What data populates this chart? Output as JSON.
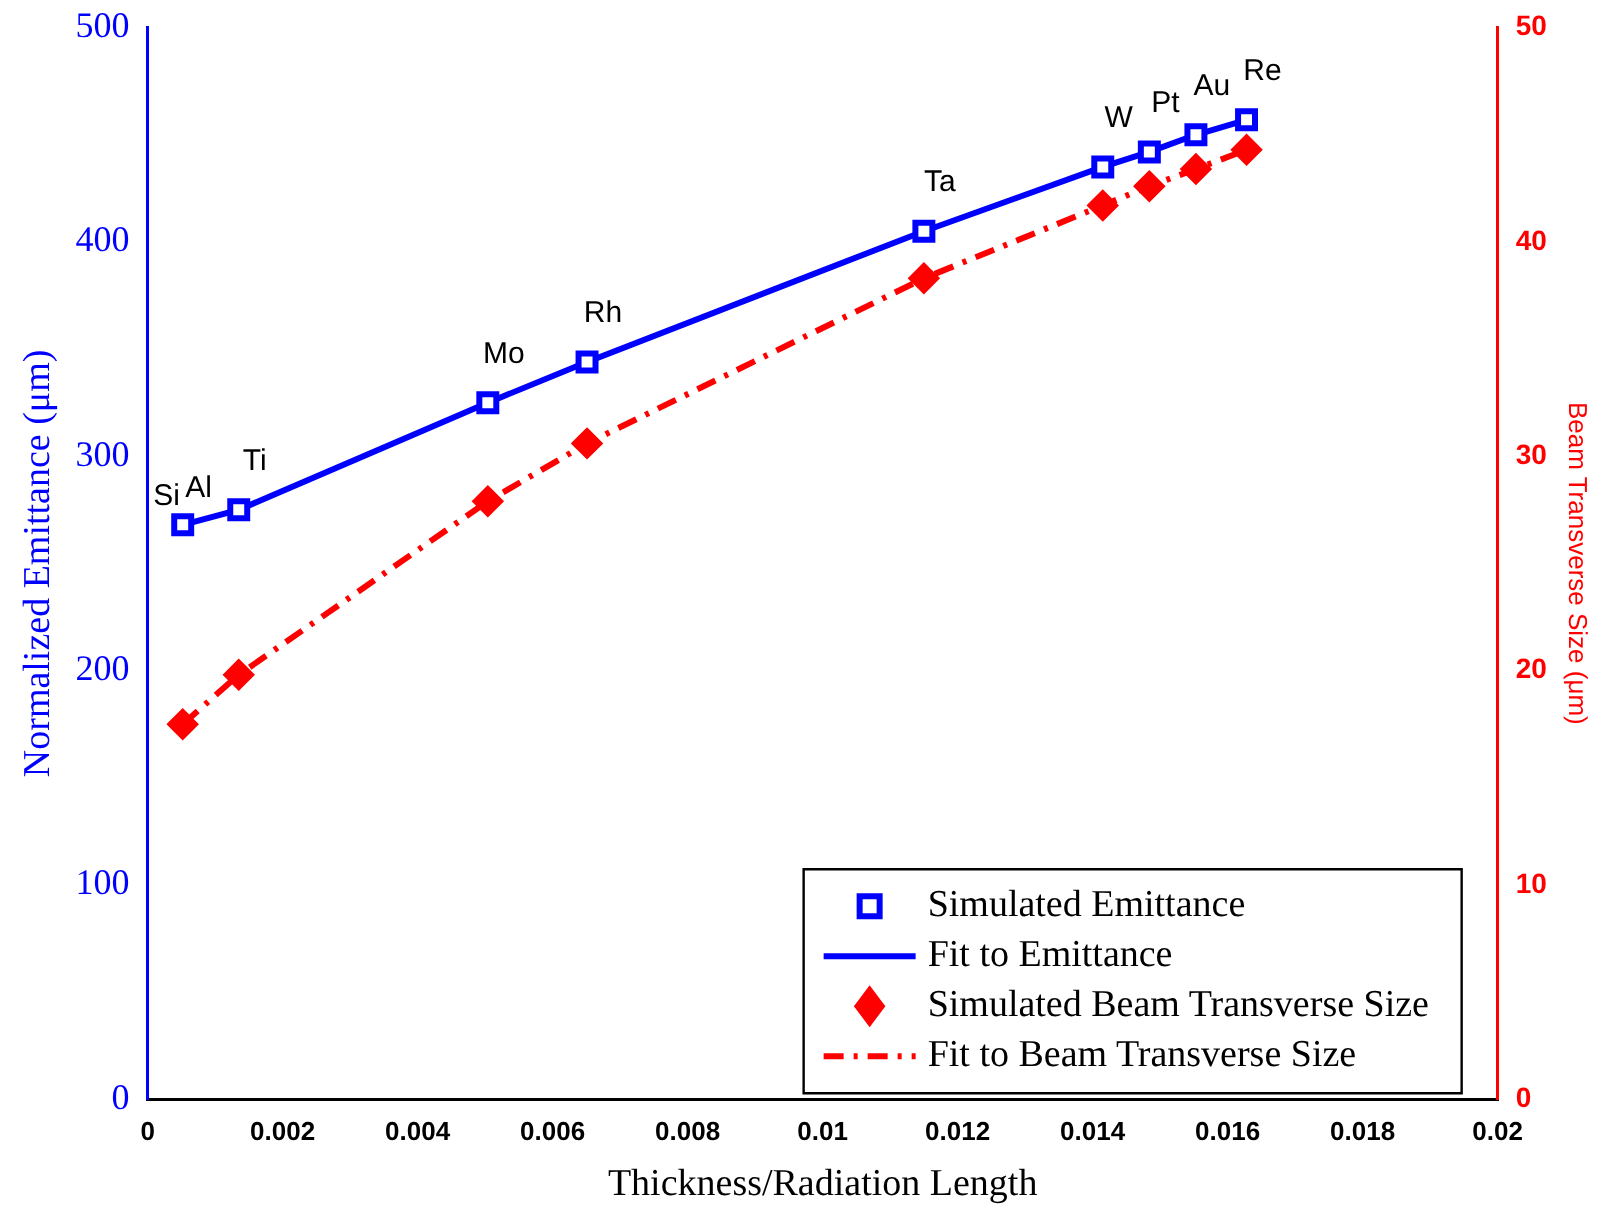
{
  "chart_data": {
    "type": "scatter",
    "xlabel": "Thickness/Radiation Length",
    "ylabel": "Normalized Emittance (μm)",
    "y2label": "Beam Transverse Size (μm)",
    "xlim": [
      0,
      0.02
    ],
    "xticks": [
      0,
      0.002,
      0.004,
      0.006,
      0.008,
      0.01,
      0.012,
      0.014,
      0.016,
      0.018,
      0.02
    ],
    "ylim": [
      0,
      500
    ],
    "yticks": [
      0,
      100,
      200,
      300,
      400,
      500
    ],
    "y2lim": [
      0,
      50
    ],
    "y2ticks": [
      0,
      10,
      20,
      30,
      40,
      50
    ],
    "grid": false,
    "legend": "bottom right",
    "series": [
      {
        "name": "Simulated Emittance",
        "color": "#0000ff",
        "marker": "square",
        "x": [
          0.00052,
          0.00135,
          0.00504,
          0.00651,
          0.0115,
          0.01415,
          0.01484,
          0.01553,
          0.01628
        ],
        "values": [
          268,
          275,
          325,
          344,
          405,
          435,
          442,
          450,
          457
        ]
      },
      {
        "name": "Fit to Emittance",
        "type": "line",
        "color": "#0000ff",
        "marker": "none",
        "line_style": "solid",
        "x": [
          0.00052,
          0.00135,
          0.00504,
          0.00651,
          0.0115,
          0.01415,
          0.01484,
          0.01553,
          0.01628
        ],
        "values": [
          268,
          275,
          325,
          344,
          405,
          435,
          442,
          450,
          457
        ]
      },
      {
        "name": "Simulated Beam Transverse Size",
        "axis": "y2",
        "color": "#ff0000",
        "marker": "diamond",
        "x": [
          0.00052,
          0.00135,
          0.00504,
          0.00651,
          0.0115,
          0.01415,
          0.01484,
          0.01553,
          0.01628
        ],
        "values": [
          17.5,
          19.8,
          27.9,
          30.6,
          38.3,
          41.7,
          42.6,
          43.4,
          44.3
        ]
      },
      {
        "name": "Fit to Beam Transverse Size",
        "type": "line",
        "axis": "y2",
        "color": "#ff0000",
        "marker": "none",
        "line_style": "dashed",
        "x": [
          0.00052,
          0.00135,
          0.00504,
          0.00651,
          0.0115,
          0.01415,
          0.01484,
          0.01553,
          0.01628
        ],
        "values": [
          17.5,
          19.8,
          27.9,
          30.6,
          38.3,
          41.7,
          42.6,
          43.4,
          44.3
        ]
      }
    ],
    "annotations": [
      {
        "text": "Si",
        "x": 0.00052,
        "y": 268
      },
      {
        "text": "Al",
        "x": 0.00052,
        "y": 268
      },
      {
        "text": "Ti",
        "x": 0.00135,
        "y": 275
      },
      {
        "text": "Mo",
        "x": 0.00504,
        "y": 325
      },
      {
        "text": "Rh",
        "x": 0.00651,
        "y": 344
      },
      {
        "text": "Ta",
        "x": 0.0115,
        "y": 405
      },
      {
        "text": "W",
        "x": 0.01415,
        "y": 435
      },
      {
        "text": "Pt",
        "x": 0.01484,
        "y": 442
      },
      {
        "text": "Au",
        "x": 0.01553,
        "y": 450
      },
      {
        "text": "Re",
        "x": 0.01628,
        "y": 457
      }
    ]
  }
}
